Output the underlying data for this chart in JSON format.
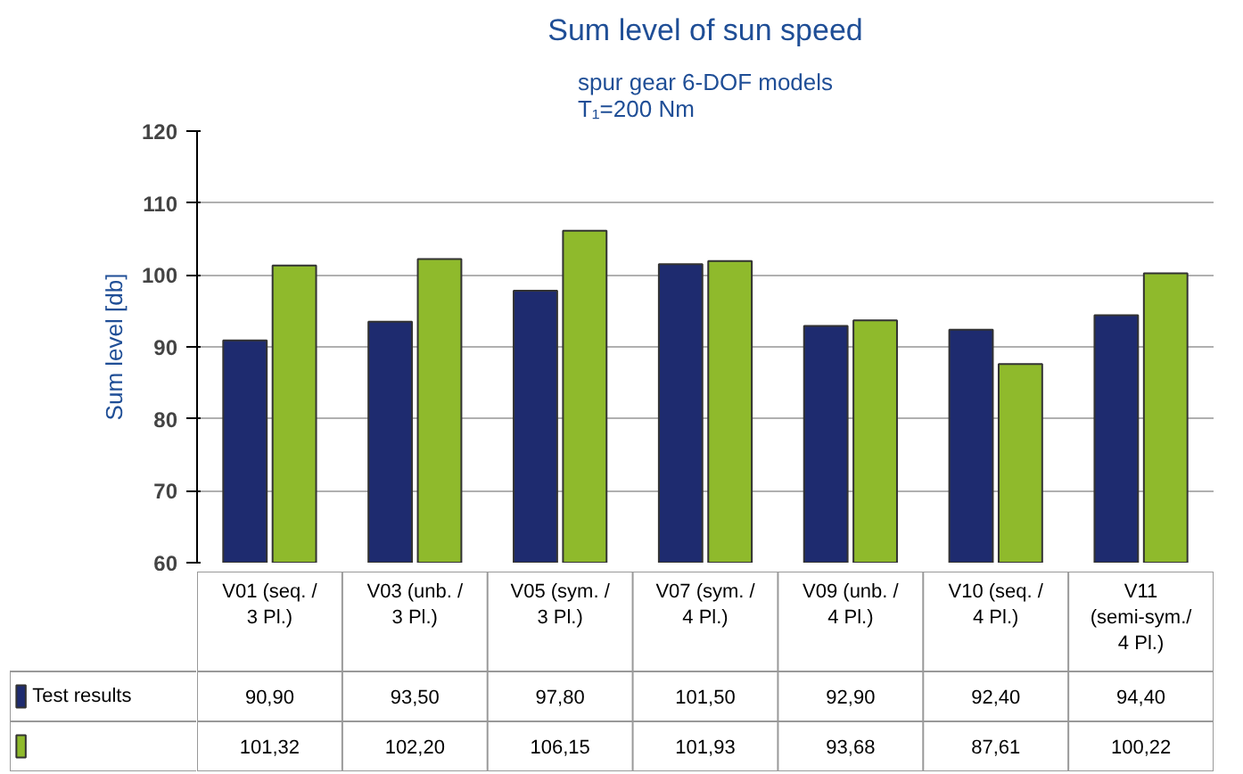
{
  "chart_data": {
    "type": "bar",
    "title": "Sum level of sun speed",
    "subtitle": "spur gear 6-DOF models\nT₁=200 Nm",
    "ylabel": "Sum level [db]",
    "categories": [
      "V01 (seq. / 3 Pl.)",
      "V03 (unb. / 3 Pl.)",
      "V05 (sym. / 3 Pl.)",
      "V07 (sym. / 4 Pl.)",
      "V09 (unb. / 4 Pl.)",
      "V10 (seq. / 4 Pl.)",
      "V11 (semi-sym./ 4 Pl.)"
    ],
    "series": [
      {
        "name": "Test results",
        "color": "#1e2b6f",
        "values": [
          90.9,
          93.5,
          97.8,
          101.5,
          92.9,
          92.4,
          94.4
        ],
        "value_labels": [
          "90,90",
          "93,50",
          "97,80",
          "101,50",
          "92,90",
          "92,40",
          "94,40"
        ]
      },
      {
        "color": "#8fba2c",
        "values": [
          101.32,
          102.2,
          106.15,
          101.93,
          93.68,
          87.61,
          100.22
        ],
        "value_labels": [
          "101,32",
          "102,20",
          "106,15",
          "101,93",
          "93,68",
          "87,61",
          "100,22"
        ]
      }
    ],
    "ylim": [
      60,
      120
    ],
    "yticks": [
      60,
      70,
      80,
      90,
      100,
      110,
      120
    ],
    "grid": "y",
    "legend": "bottom"
  }
}
